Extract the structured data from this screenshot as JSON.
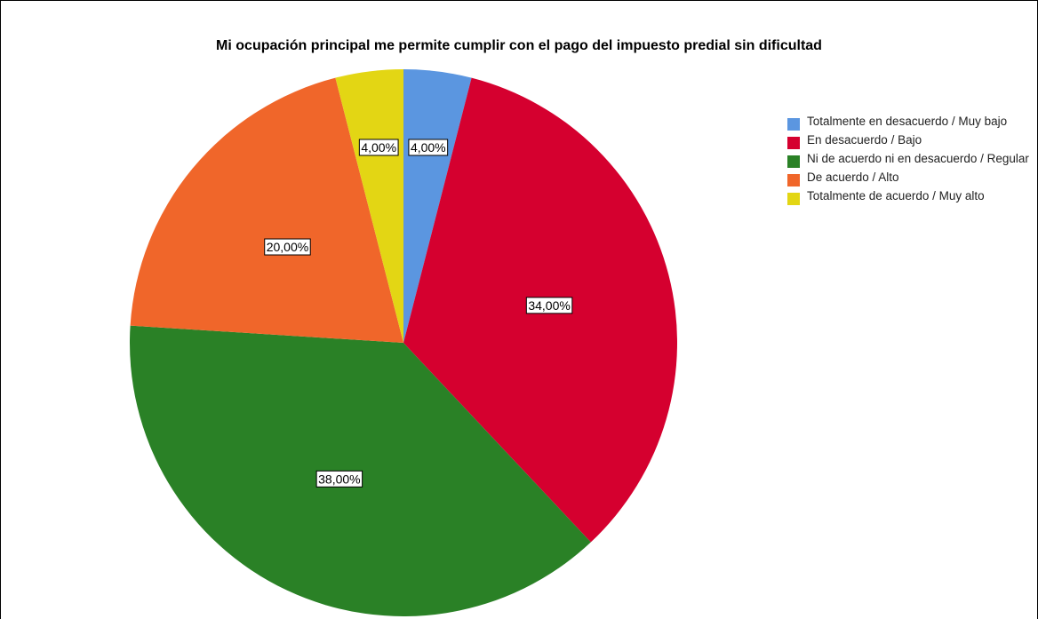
{
  "chart_data": {
    "type": "pie",
    "title": "Mi ocupación principal me permite cumplir con el pago del impuesto predial sin dificultad",
    "categories": [
      "Totalmente en desacuerdo / Muy bajo",
      "En desacuerdo / Bajo",
      "Ni de acuerdo ni en desacuerdo / Regular",
      "De acuerdo / Alto",
      "Totalmente de acuerdo / Muy alto"
    ],
    "values": [
      4,
      34,
      38,
      20,
      4
    ],
    "value_labels": [
      "4,00%",
      "34,00%",
      "38,00%",
      "20,00%",
      "4,00%"
    ],
    "colors": [
      "#5b96e0",
      "#d5002f",
      "#2a8126",
      "#f0662a",
      "#e3d614"
    ],
    "legend": "right"
  }
}
